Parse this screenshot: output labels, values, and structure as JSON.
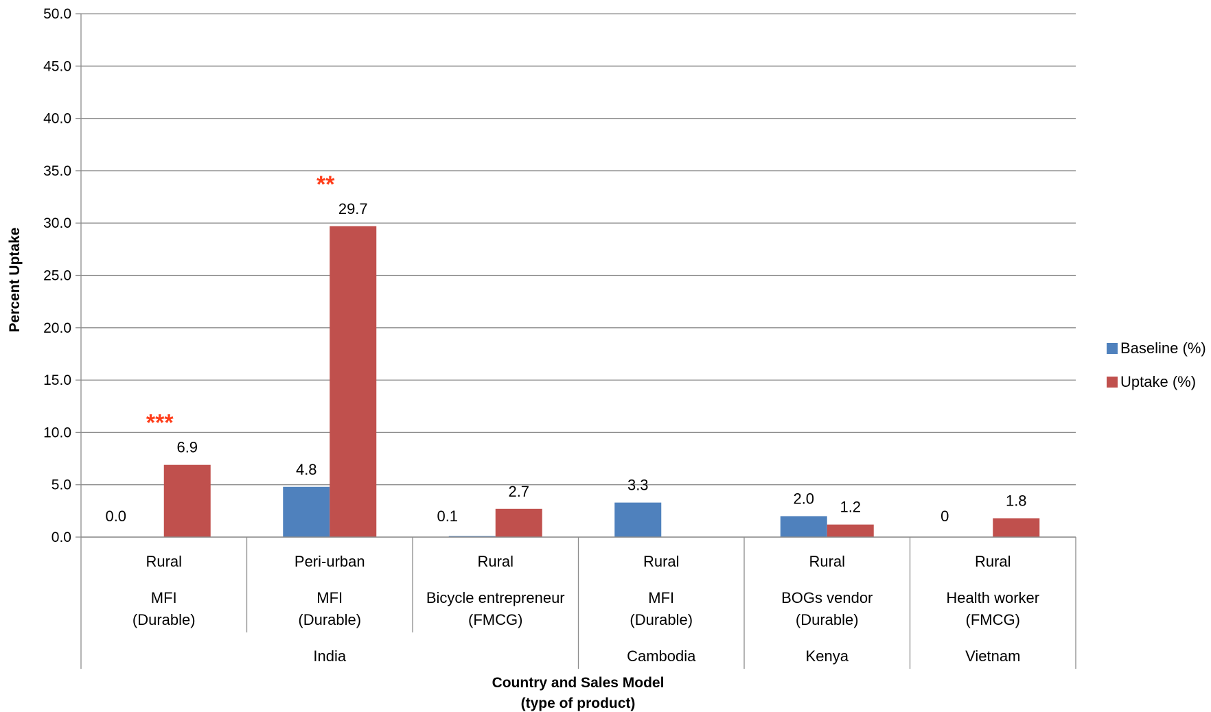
{
  "chart_data": {
    "type": "bar",
    "title": "",
    "ylabel": "Percent Uptake",
    "xlabel_lines": [
      "Country and Sales Model",
      "(type of product)"
    ],
    "ylim": [
      0,
      50
    ],
    "yticks": [
      "0.0",
      "5.0",
      "10.0",
      "15.0",
      "20.0",
      "25.0",
      "30.0",
      "35.0",
      "40.0",
      "45.0",
      "50.0"
    ],
    "grid": true,
    "legend_position": "right",
    "categories": [
      {
        "setting": "Rural",
        "model": "MFI",
        "product": "(Durable)"
      },
      {
        "setting": "Peri-urban",
        "model": "MFI",
        "product": "(Durable)"
      },
      {
        "setting": "Rural",
        "model": "Bicycle entrepreneur",
        "product": "(FMCG)"
      },
      {
        "setting": "Rural",
        "model": "MFI",
        "product": "(Durable)"
      },
      {
        "setting": "Rural",
        "model": "BOGs vendor",
        "product": "(Durable)"
      },
      {
        "setting": "Rural",
        "model": "Health worker",
        "product": "(FMCG)"
      }
    ],
    "countries": [
      {
        "name": "India",
        "span": [
          0,
          2
        ]
      },
      {
        "name": "Cambodia",
        "span": [
          3,
          3
        ]
      },
      {
        "name": "Kenya",
        "span": [
          4,
          4
        ]
      },
      {
        "name": "Vietnam",
        "span": [
          5,
          5
        ]
      }
    ],
    "series": [
      {
        "name": "Baseline (%)",
        "color": "#4f81bd",
        "values": [
          0.0,
          4.8,
          0.1,
          3.3,
          2.0,
          0
        ],
        "labels": [
          "0.0",
          "4.8",
          "0.1",
          "3.3",
          "2.0",
          "0"
        ]
      },
      {
        "name": "Uptake (%)",
        "color": "#c0504d",
        "values": [
          6.9,
          29.7,
          2.7,
          null,
          1.2,
          1.8
        ],
        "labels": [
          "6.9",
          "29.7",
          "2.7",
          "",
          "1.2",
          "1.8"
        ]
      }
    ],
    "annotations": [
      {
        "category": 0,
        "series": 1,
        "text": "***"
      },
      {
        "category": 1,
        "series": 1,
        "text": "**"
      }
    ]
  }
}
